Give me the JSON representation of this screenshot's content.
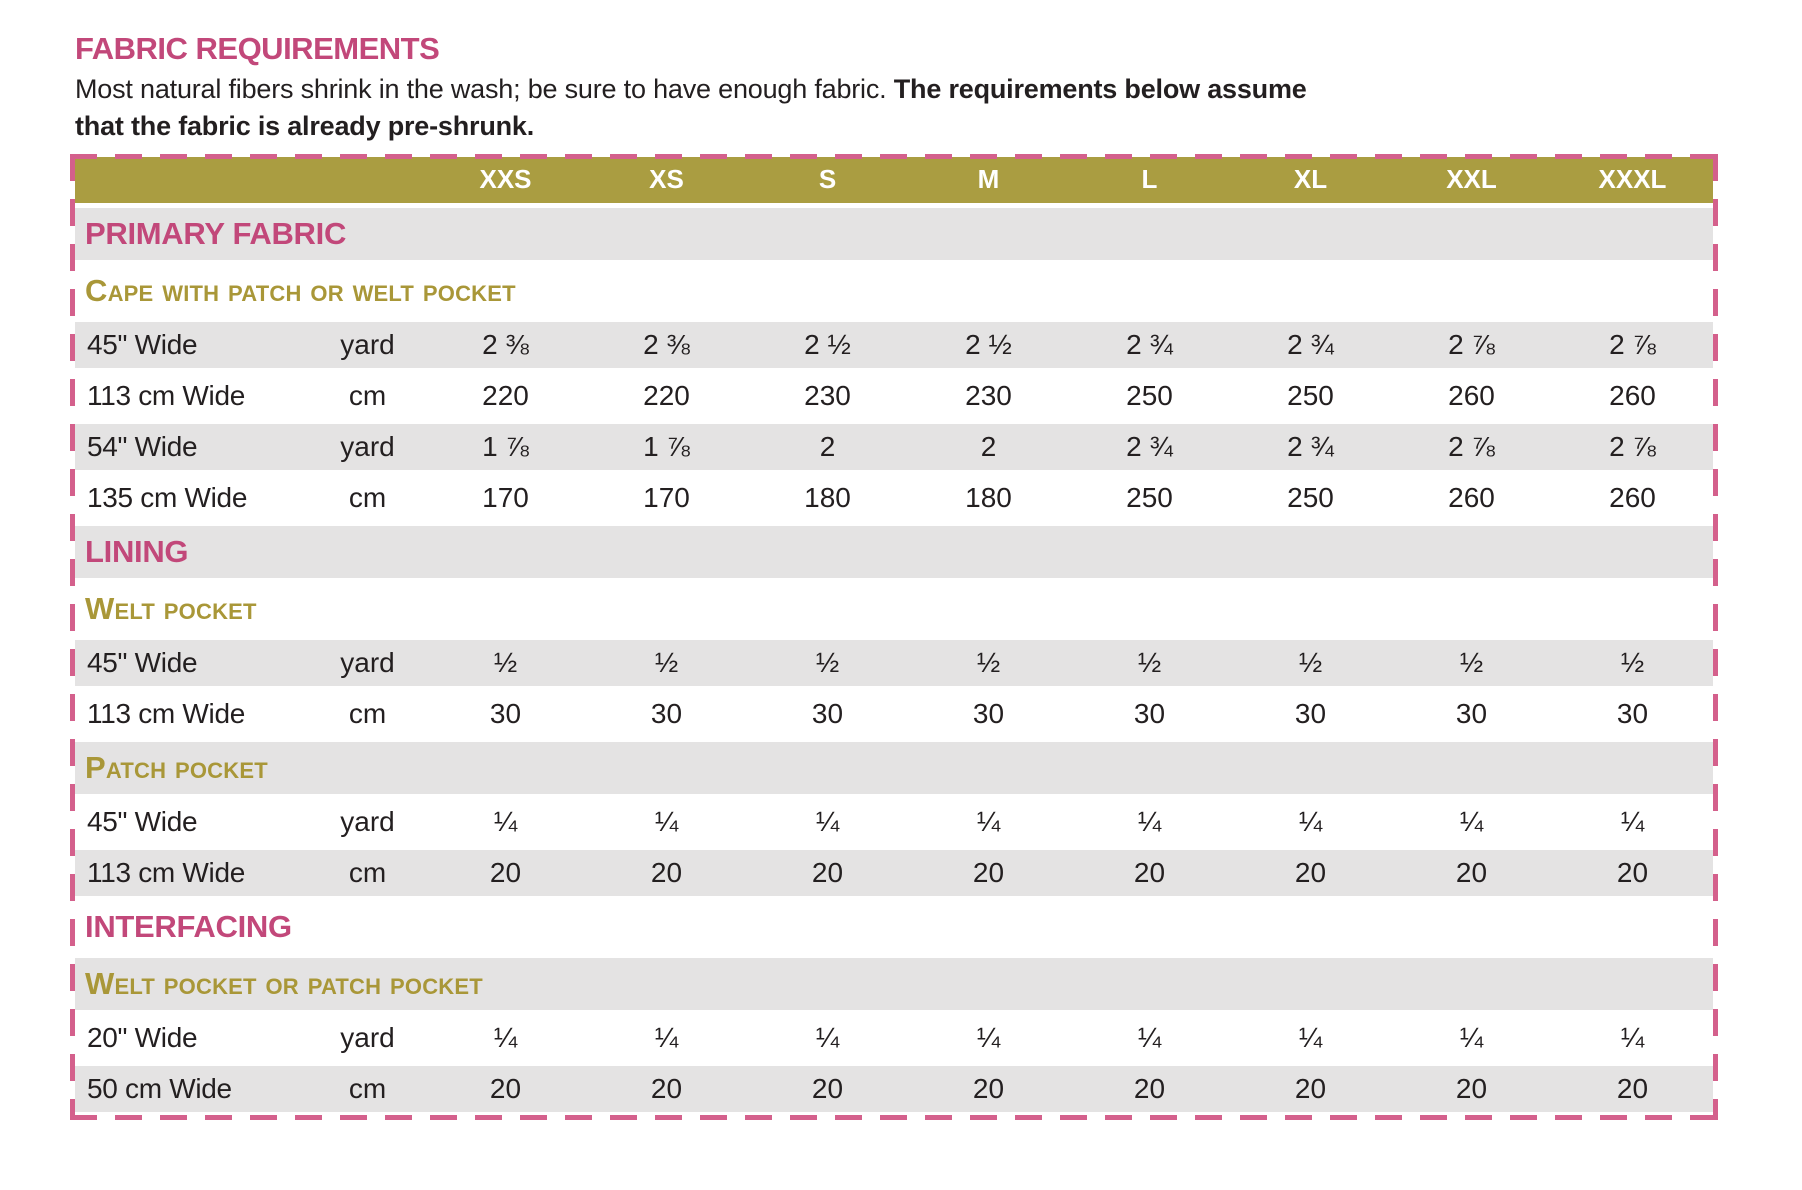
{
  "header": {
    "title": "FABRIC REQUIREMENTS",
    "intro_normal": "Most natural fibers shrink in the wash; be sure to have enough fabric. ",
    "intro_bold": "The requirements below assume that the fabric is already pre-shrunk."
  },
  "colors": {
    "accent_pink": "#c2487a",
    "dash_pink": "#d4608c",
    "olive_header": "#aa9d41",
    "olive_subheader_text": "#a99738",
    "row_gray": "#e4e3e3",
    "text_ink": "#231f20"
  },
  "table": {
    "size_headers": [
      "XXS",
      "XS",
      "S",
      "M",
      "L",
      "XL",
      "XXL",
      "XXXL"
    ],
    "sections": [
      {
        "name": "PRIMARY FABRIC",
        "groups": [
          {
            "name": "Cape with Patch or Welt Pocket",
            "rows": [
              {
                "label": "45\" Wide",
                "unit": "yard",
                "values": [
                  "2 ⅜",
                  "2 ⅜",
                  "2 ½",
                  "2 ½",
                  "2 ¾",
                  "2 ¾",
                  "2 ⅞",
                  "2 ⅞"
                ]
              },
              {
                "label": "113 cm Wide",
                "unit": "cm",
                "values": [
                  "220",
                  "220",
                  "230",
                  "230",
                  "250",
                  "250",
                  "260",
                  "260"
                ]
              },
              {
                "label": "54\" Wide",
                "unit": "yard",
                "values": [
                  "1 ⅞",
                  "1 ⅞",
                  "2",
                  "2",
                  "2 ¾",
                  "2 ¾",
                  "2 ⅞",
                  "2 ⅞"
                ]
              },
              {
                "label": "135 cm Wide",
                "unit": "cm",
                "values": [
                  "170",
                  "170",
                  "180",
                  "180",
                  "250",
                  "250",
                  "260",
                  "260"
                ]
              }
            ]
          }
        ]
      },
      {
        "name": "LINING",
        "groups": [
          {
            "name": "Welt Pocket",
            "rows": [
              {
                "label": "45\" Wide",
                "unit": "yard",
                "values": [
                  "½",
                  "½",
                  "½",
                  "½",
                  "½",
                  "½",
                  "½",
                  "½"
                ]
              },
              {
                "label": "113 cm Wide",
                "unit": "cm",
                "values": [
                  "30",
                  "30",
                  "30",
                  "30",
                  "30",
                  "30",
                  "30",
                  "30"
                ]
              }
            ]
          },
          {
            "name": "Patch Pocket",
            "rows": [
              {
                "label": "45\" Wide",
                "unit": "yard",
                "values": [
                  "¼",
                  "¼",
                  "¼",
                  "¼",
                  "¼",
                  "¼",
                  "¼",
                  "¼"
                ]
              },
              {
                "label": "113 cm Wide",
                "unit": "cm",
                "values": [
                  "20",
                  "20",
                  "20",
                  "20",
                  "20",
                  "20",
                  "20",
                  "20"
                ]
              }
            ]
          }
        ]
      },
      {
        "name": "INTERFACING",
        "groups": [
          {
            "name": "Welt Pocket or Patch Pocket",
            "rows": [
              {
                "label": "20\" Wide",
                "unit": "yard",
                "values": [
                  "¼",
                  "¼",
                  "¼",
                  "¼",
                  "¼",
                  "¼",
                  "¼",
                  "¼"
                ]
              },
              {
                "label": "50 cm Wide",
                "unit": "cm",
                "values": [
                  "20",
                  "20",
                  "20",
                  "20",
                  "20",
                  "20",
                  "20",
                  "20"
                ]
              }
            ]
          }
        ]
      }
    ]
  }
}
